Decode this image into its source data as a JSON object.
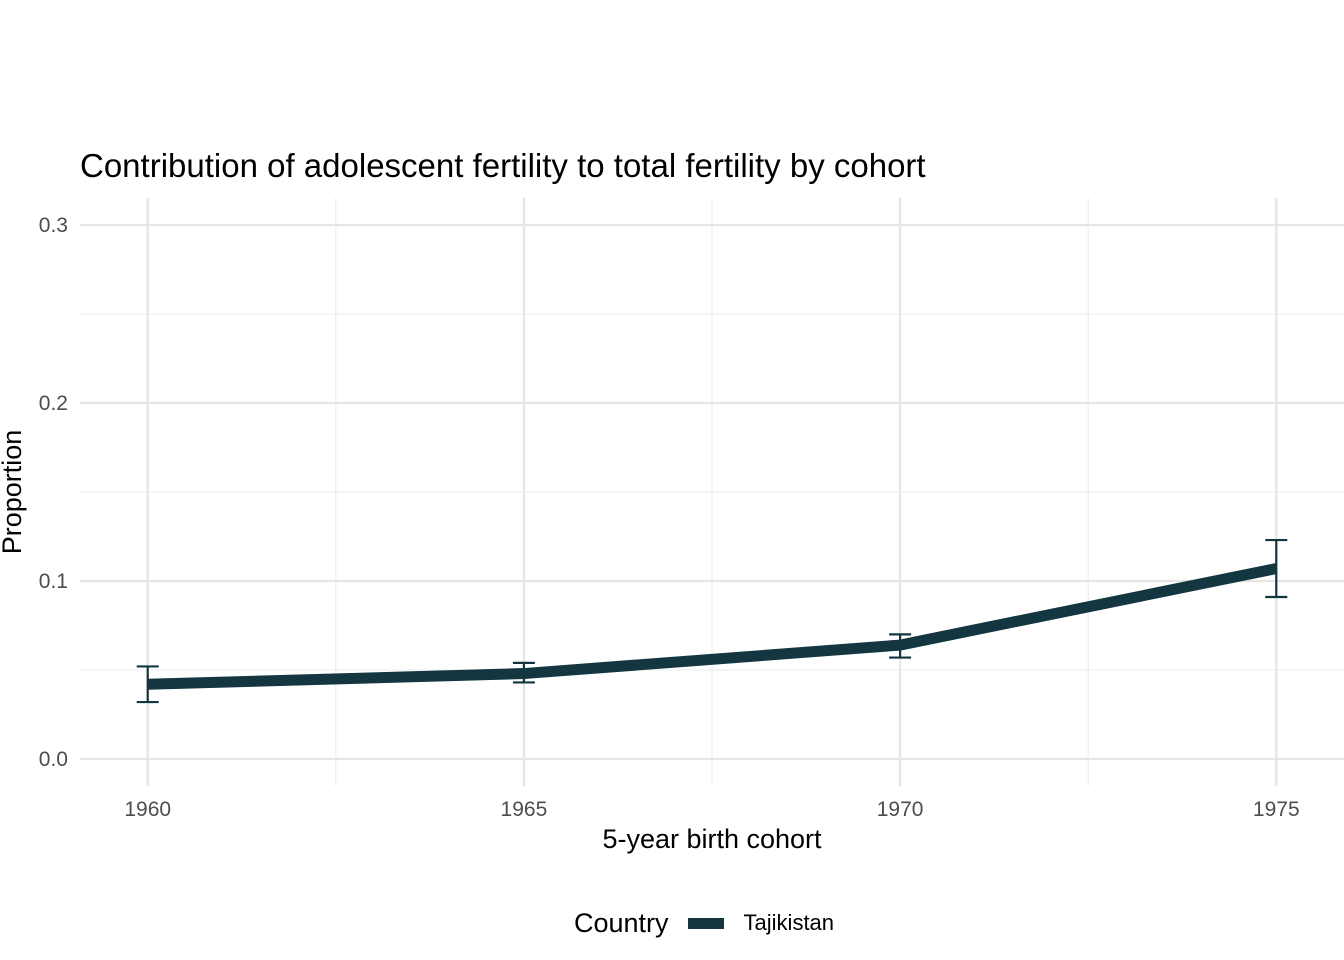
{
  "chart_data": {
    "type": "line",
    "title": "Contribution of adolescent fertility to total fertility by cohort",
    "xlabel": "5-year birth cohort",
    "ylabel": "Proportion",
    "x": [
      1960,
      1965,
      1970,
      1975
    ],
    "x_ticks": [
      "1960",
      "1965",
      "1970",
      "1975"
    ],
    "y_ticks": [
      "0.0",
      "0.1",
      "0.2",
      "0.3"
    ],
    "xlim": [
      1959.1,
      1975.9
    ],
    "ylim": [
      0,
      0.3
    ],
    "grid": true,
    "legend": {
      "title": "Country",
      "position": "bottom"
    },
    "series": [
      {
        "name": "Tajikistan",
        "color": "#133640",
        "values": [
          0.042,
          0.048,
          0.064,
          0.107
        ],
        "error_low": [
          0.032,
          0.043,
          0.057,
          0.091
        ],
        "error_high": [
          0.052,
          0.054,
          0.07,
          0.123
        ]
      }
    ]
  }
}
